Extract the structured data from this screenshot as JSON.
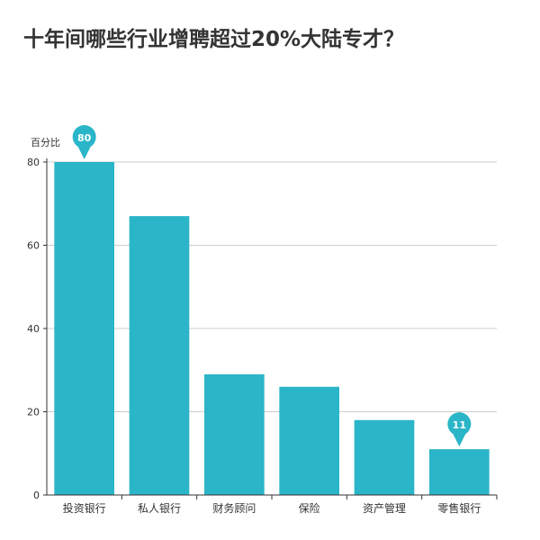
{
  "title": "十年间哪些行业增聘超过20%大陆专才？",
  "chart_data": {
    "type": "bar",
    "title": "十年间哪些行业增聘超过20%大陆专才？",
    "ylabel": "百分比",
    "xlabel": "",
    "categories": [
      "投资银行",
      "私人银行",
      "财务顾问",
      "保险",
      "资产管理",
      "零售银行"
    ],
    "values": [
      80,
      67,
      29,
      26,
      18,
      11
    ],
    "ylim": [
      0,
      80
    ],
    "yticks": [
      0,
      20,
      40,
      60,
      80
    ],
    "grid": true,
    "highlighted": [
      {
        "category": "投资银行",
        "label": "80"
      },
      {
        "category": "零售银行",
        "label": "11"
      }
    ],
    "colors": {
      "bar": "#2bb5c8",
      "grid": "#cccccc",
      "axis": "#333333",
      "text": "#333333"
    }
  }
}
